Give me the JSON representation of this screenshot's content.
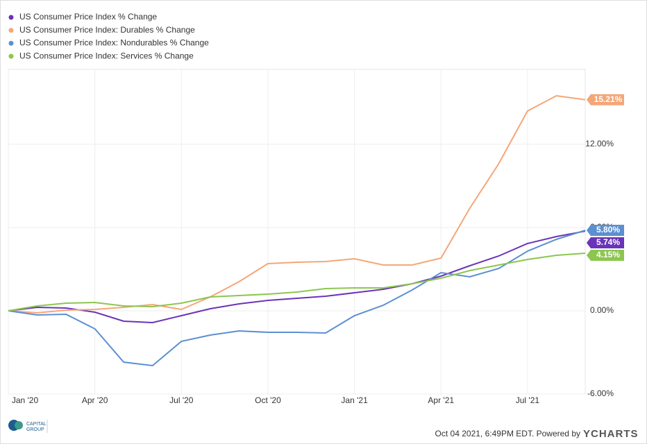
{
  "chart_data": {
    "type": "line",
    "categories": [
      "Jan '20",
      null,
      null,
      "Apr '20",
      null,
      null,
      "Jul '20",
      null,
      null,
      "Oct '20",
      null,
      null,
      "Jan '21",
      null,
      null,
      "Apr '21",
      null,
      null,
      "Jul '21",
      null,
      null
    ],
    "ylim": [
      -6,
      17.4
    ],
    "yticks": [
      {
        "value": -6,
        "label": "-6.00%"
      },
      {
        "value": 0,
        "label": "0.00%"
      },
      {
        "value": 6,
        "label": "6.00%"
      },
      {
        "value": 12,
        "label": "12.00%"
      }
    ],
    "grid": true,
    "legend": "top-left",
    "series": [
      {
        "name": "US Consumer Price Index % Change",
        "color": "#6a33b8",
        "values": [
          0,
          0.25,
          0.2,
          -0.1,
          -0.75,
          -0.85,
          -0.35,
          0.15,
          0.5,
          0.75,
          0.9,
          1.05,
          1.3,
          1.55,
          1.95,
          2.5,
          3.25,
          3.95,
          4.85,
          5.35,
          5.74
        ],
        "value_labels": [
          null,
          null,
          null,
          null,
          null,
          null,
          null,
          null,
          null,
          null,
          null,
          null,
          null,
          null,
          null,
          null,
          null,
          null,
          null,
          null,
          "5.74%"
        ]
      },
      {
        "name": "US Consumer Price Index: Durables % Change",
        "color": "#f5a677",
        "values": [
          0,
          -0.15,
          0.05,
          0.1,
          0.25,
          0.45,
          0.1,
          1.0,
          2.1,
          3.4,
          3.5,
          3.55,
          3.75,
          3.3,
          3.3,
          3.8,
          7.4,
          10.6,
          14.4,
          15.5,
          15.21
        ],
        "value_labels": [
          null,
          null,
          null,
          null,
          null,
          null,
          null,
          null,
          null,
          null,
          null,
          null,
          null,
          null,
          null,
          null,
          null,
          null,
          null,
          null,
          "15.21%"
        ]
      },
      {
        "name": "US Consumer Price Index: Nondurables % Change",
        "color": "#5b8fd1",
        "values": [
          0,
          -0.3,
          -0.25,
          -1.3,
          -3.7,
          -3.95,
          -2.2,
          -1.75,
          -1.45,
          -1.55,
          -1.55,
          -1.6,
          -0.35,
          0.4,
          1.5,
          2.75,
          2.45,
          3.05,
          4.3,
          5.15,
          5.8
        ],
        "value_labels": [
          null,
          null,
          null,
          null,
          null,
          null,
          null,
          null,
          null,
          null,
          null,
          null,
          null,
          null,
          null,
          null,
          null,
          null,
          null,
          null,
          "5.80%"
        ]
      },
      {
        "name": "US Consumer Price Index: Services % Change",
        "color": "#8cc64f",
        "values": [
          0,
          0.35,
          0.55,
          0.6,
          0.35,
          0.3,
          0.55,
          1.0,
          1.1,
          1.2,
          1.35,
          1.6,
          1.65,
          1.65,
          1.95,
          2.35,
          2.9,
          3.3,
          3.7,
          4.0,
          4.15
        ],
        "value_labels": [
          null,
          null,
          null,
          null,
          null,
          null,
          null,
          null,
          null,
          null,
          null,
          null,
          null,
          null,
          null,
          null,
          null,
          null,
          null,
          null,
          "4.15%"
        ]
      }
    ]
  },
  "footer": {
    "timestamp": "Oct 04 2021, 6:49PM EDT. Powered by",
    "brand": "YCHARTS",
    "logo_line1": "CAPITAL",
    "logo_line2": "GROUP"
  }
}
